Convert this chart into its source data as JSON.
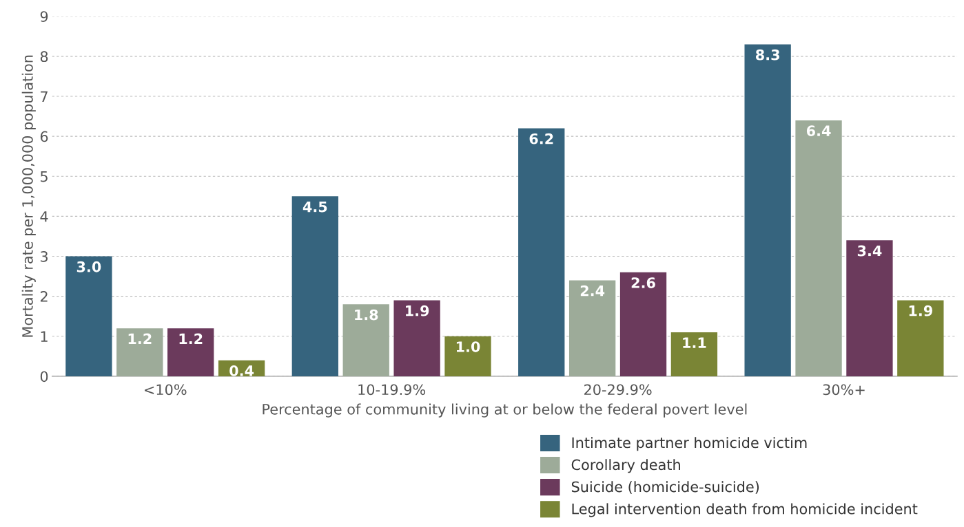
{
  "chart_data": {
    "type": "bar",
    "xlabel": "Percentage of community living at or below the federal povert level",
    "ylabel": "Mortality rate per 1,000,000 population",
    "categories": [
      "<10%",
      "10-19.9%",
      "20-29.9%",
      "30%+"
    ],
    "series": [
      {
        "name": "Intimate partner homicide victim",
        "color": "#36647e",
        "values": [
          3.0,
          4.5,
          6.2,
          8.3
        ],
        "value_labels": [
          "3.0",
          "4.5",
          "6.2",
          "8.3"
        ]
      },
      {
        "name": "Corollary death",
        "color": "#9dab99",
        "values": [
          1.2,
          1.8,
          2.4,
          6.4
        ],
        "value_labels": [
          "1.2",
          "1.8",
          "2.4",
          "6.4"
        ]
      },
      {
        "name": "Suicide (homicide-suicide)",
        "color": "#6b3a5c",
        "values": [
          1.2,
          1.9,
          2.6,
          3.4
        ],
        "value_labels": [
          "1.2",
          "1.9",
          "2.6",
          "3.4"
        ]
      },
      {
        "name": "Legal intervention death from homicide incident",
        "color": "#7a8535",
        "values": [
          0.4,
          1.0,
          1.1,
          1.9
        ],
        "value_labels": [
          "0.4",
          "1.0",
          "1.1",
          "1.9"
        ]
      }
    ],
    "ylim": [
      0,
      9
    ],
    "yticks": [
      0,
      1,
      2,
      3,
      4,
      5,
      6,
      7,
      8,
      9
    ],
    "grid": "y",
    "legend": "bottom right"
  }
}
